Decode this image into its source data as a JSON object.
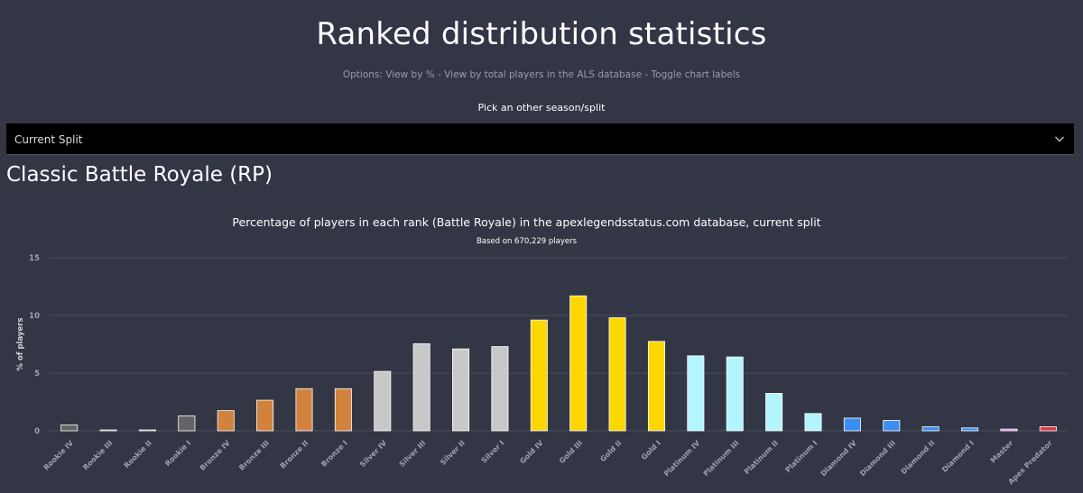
{
  "page": {
    "title": "Ranked distribution statistics",
    "options_prefix": "Options:",
    "option_percent": "View by %",
    "option_total": "View by total players in the ALS database",
    "option_labels": "Toggle chart labels",
    "separator": " - ",
    "pick_label": "Pick an other season/split",
    "select_value": "Current Split",
    "section_title": "Classic Battle Royale (RP)"
  },
  "chart_data": {
    "type": "bar",
    "title": "Percentage of players in each rank (Battle Royale) in the apexlegendsstatus.com database, current split",
    "subtitle": "Based on 670,229 players",
    "xlabel": "",
    "ylabel": "% of players",
    "ylim": [
      0,
      15
    ],
    "yticks": [
      0,
      5,
      10,
      15
    ],
    "categories": [
      "Rookie IV",
      "Rookie III",
      "Rookie II",
      "Rookie I",
      "Bronze IV",
      "Bronze III",
      "Bronze II",
      "Bronze I",
      "Silver IV",
      "Silver III",
      "Silver II",
      "Silver I",
      "Gold IV",
      "Gold III",
      "Gold II",
      "Gold I",
      "Platinum IV",
      "Platinum III",
      "Platinum II",
      "Platinum I",
      "Diamond IV",
      "Diamond III",
      "Diamond II",
      "Diamond I",
      "Master",
      "Apex Predator"
    ],
    "values": [
      0.5,
      0.05,
      0.05,
      1.3,
      1.75,
      2.65,
      3.65,
      3.65,
      5.15,
      7.55,
      7.1,
      7.3,
      9.6,
      11.7,
      9.8,
      7.75,
      6.5,
      6.4,
      3.25,
      1.5,
      1.1,
      0.9,
      0.35,
      0.25,
      0.15,
      0.35
    ],
    "colors": [
      "#646464",
      "#646464",
      "#646464",
      "#646464",
      "#d1823d",
      "#d1823d",
      "#d1823d",
      "#d1823d",
      "#c8c8c8",
      "#c8c8c8",
      "#c8c8c8",
      "#c8c8c8",
      "#ffd700",
      "#ffd700",
      "#ffd700",
      "#ffd700",
      "#b3f5ff",
      "#b3f5ff",
      "#b3f5ff",
      "#b3f5ff",
      "#3d8ef2",
      "#3d8ef2",
      "#3d8ef2",
      "#3d8ef2",
      "#c888f0",
      "#e0364a"
    ],
    "legend": "none",
    "grid": true
  },
  "theme": {
    "background": "#333645",
    "grid_color": "#4a4d5c",
    "bar_border": "#ffffff",
    "tick_color": "#a0a2ae"
  }
}
